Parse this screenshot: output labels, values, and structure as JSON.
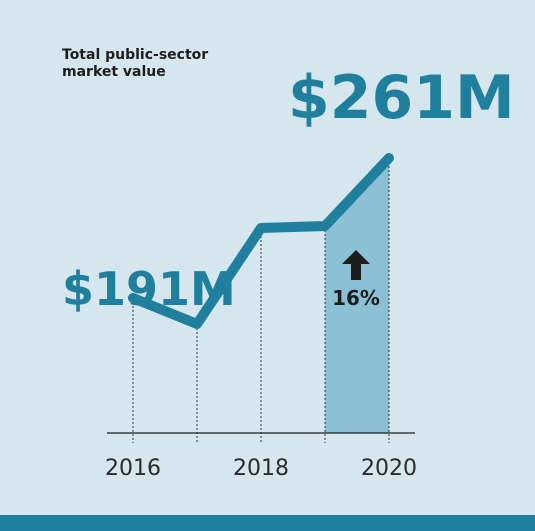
{
  "chart_data": {
    "type": "line",
    "title": "Total public-sector market value",
    "x": [
      2016,
      2017,
      2018,
      2019,
      2020
    ],
    "series": [
      {
        "values": [
          191,
          178,
          226,
          227,
          261
        ]
      }
    ],
    "xticks": [
      "2016",
      "2018",
      "2020"
    ],
    "ylim": [
      120,
      280
    ],
    "highlight": {
      "from": 2019,
      "to": 2020
    },
    "annotations": {
      "start_value": "$191M",
      "end_value": "$261M",
      "change": "16%"
    }
  },
  "colors": {
    "background": "#d5e6ee",
    "line": "#1f7f9c",
    "highlight_fill": "#8cc0d4",
    "bottom_bar": "#1f7f9c",
    "text": "#1d1d1d"
  }
}
